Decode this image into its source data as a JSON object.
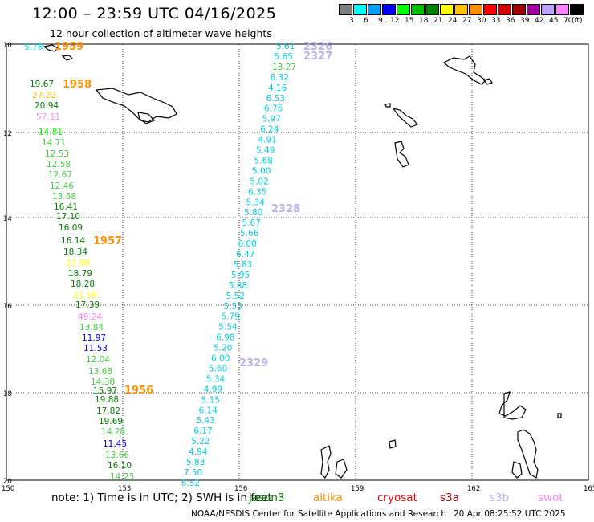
{
  "header": {
    "title": "12:00 – 23:59 UTC 04/16/2025",
    "subtitle": "12 hour collection of altimeter wave heights"
  },
  "colorbar": {
    "unit": "(ft)",
    "stops": [
      {
        "label": "3",
        "color": "#808080"
      },
      {
        "label": "6",
        "color": "#00ffff"
      },
      {
        "label": "9",
        "color": "#00a0ff"
      },
      {
        "label": "12",
        "color": "#0000ff"
      },
      {
        "label": "15",
        "color": "#00ff00"
      },
      {
        "label": "18",
        "color": "#00c000"
      },
      {
        "label": "21",
        "color": "#008000"
      },
      {
        "label": "24",
        "color": "#ffff00"
      },
      {
        "label": "27",
        "color": "#ffc000"
      },
      {
        "label": "30",
        "color": "#ff9000"
      },
      {
        "label": "33",
        "color": "#ff0000"
      },
      {
        "label": "36",
        "color": "#d00000"
      },
      {
        "label": "39",
        "color": "#a00000"
      },
      {
        "label": "42",
        "color": "#a000a0"
      },
      {
        "label": "45",
        "color": "#c0a0ff"
      },
      {
        "label": "70",
        "color": "#ff80ff"
      },
      {
        "label": "",
        "color": "#000000"
      }
    ]
  },
  "axes": {
    "lon_labels": [
      "150",
      "153",
      "156",
      "159",
      "162",
      "165"
    ],
    "lat_labels": [
      "10",
      "12",
      "14",
      "16",
      "18",
      "20"
    ]
  },
  "passes": [
    {
      "id": "1959",
      "color": "#ff9000"
    },
    {
      "id": "1958",
      "color": "#ff9000"
    },
    {
      "id": "1957",
      "color": "#ff9000"
    },
    {
      "id": "1956",
      "color": "#ff9000"
    },
    {
      "id": "2326",
      "color": "#c0b0f0"
    },
    {
      "id": "2327",
      "color": "#c0b0f0"
    },
    {
      "id": "2328",
      "color": "#c0b0f0"
    },
    {
      "id": "2329",
      "color": "#c0b0f0"
    }
  ],
  "track_a": {
    "values": [
      {
        "v": "5.78",
        "c": "#00e0ff"
      },
      {
        "v": "1959",
        "c": "#ff9000",
        "pass": true
      },
      {
        "v": "19.67",
        "c": "#008000"
      },
      {
        "v": "1958",
        "c": "#ff9000",
        "pass": true
      },
      {
        "v": "27.22",
        "c": "#ffc000"
      },
      {
        "v": "20.94",
        "c": "#008000"
      },
      {
        "v": "57.11",
        "c": "#ff80ff"
      },
      {
        "v": "14.81",
        "c": "#00ff00"
      },
      {
        "v": "14.71",
        "c": "#40d040"
      },
      {
        "v": "12.53",
        "c": "#40d040"
      },
      {
        "v": "12.58",
        "c": "#40d040"
      },
      {
        "v": "12.67",
        "c": "#40d040"
      },
      {
        "v": "12.46",
        "c": "#40d040"
      },
      {
        "v": "13.58",
        "c": "#40d040"
      },
      {
        "v": "16.41",
        "c": "#008000"
      },
      {
        "v": "17.10",
        "c": "#008000"
      },
      {
        "v": "16.09",
        "c": "#008000"
      },
      {
        "v": "16.14",
        "c": "#008000"
      },
      {
        "v": "18.34",
        "c": "#008000"
      },
      {
        "v": "23.98",
        "c": "#ffff00"
      },
      {
        "v": "18.79",
        "c": "#008000"
      },
      {
        "v": "18.28",
        "c": "#008000"
      },
      {
        "v": "21.59",
        "c": "#ffff00"
      },
      {
        "v": "17.39",
        "c": "#008000"
      },
      {
        "v": "49.24",
        "c": "#ff80ff"
      },
      {
        "v": "13.84",
        "c": "#40d040"
      },
      {
        "v": "11.97",
        "c": "#0000ff"
      },
      {
        "v": "11.53",
        "c": "#0000ff"
      },
      {
        "v": "12.04",
        "c": "#40d040"
      },
      {
        "v": "13.68",
        "c": "#40d040"
      },
      {
        "v": "14.38",
        "c": "#40d040"
      },
      {
        "v": "15.97",
        "c": "#008000"
      },
      {
        "v": "19.88",
        "c": "#008000"
      },
      {
        "v": "17.82",
        "c": "#008000"
      },
      {
        "v": "19.69",
        "c": "#008000"
      },
      {
        "v": "14.28",
        "c": "#40d040"
      },
      {
        "v": "11.45",
        "c": "#0000ff"
      },
      {
        "v": "13.66",
        "c": "#40d040"
      },
      {
        "v": "16.10",
        "c": "#008000"
      },
      {
        "v": "14.23",
        "c": "#40d040"
      }
    ]
  },
  "track_b": {
    "values": [
      "5.61",
      "5.65",
      "13.27",
      "6.32",
      "4.16",
      "6.53",
      "6.75",
      "5.97",
      "6.24",
      "4.91",
      "5.49",
      "5.68",
      "5.00",
      "5.02",
      "6.35",
      "5.34",
      "5.80",
      "5.67",
      "5.66",
      "6.00",
      "6.47",
      "5.83",
      "5.95",
      "5.88",
      "5.52",
      "5.53",
      "5.79",
      "5.54",
      "6.98",
      "5.20",
      "6.00",
      "5.60",
      "5.34",
      "4.99",
      "5.15",
      "6.14",
      "5.43",
      "6.17",
      "5.22",
      "4.94",
      "5.83",
      "7.50",
      "6.52"
    ]
  },
  "footer": {
    "note": "note:  1) Time is in UTC; 2) SWH is in feet",
    "missions": [
      {
        "name": "jason3",
        "color": "#008000"
      },
      {
        "name": "altika",
        "color": "#ff9000"
      },
      {
        "name": "cryosat",
        "color": "#ff0000"
      },
      {
        "name": "s3a",
        "color": "#a00000"
      },
      {
        "name": "s3b",
        "color": "#c0b0f0"
      },
      {
        "name": "swot",
        "color": "#ff80ff"
      }
    ],
    "credit": "NOAA/NESDIS Center for Satellite Applications and Research",
    "timestamp": "20 Apr 08:25:52 UTC 2025"
  }
}
